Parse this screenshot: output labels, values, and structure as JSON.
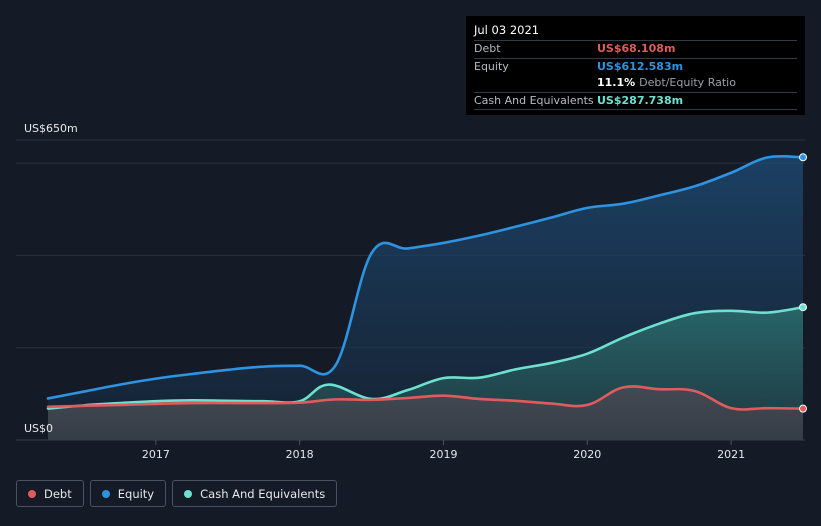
{
  "chart_data": {
    "type": "area",
    "ylim": [
      0,
      650
    ],
    "y_tick_labels": {
      "top": "US$650m",
      "bottom": "US$0"
    },
    "x_range": [
      2016.25,
      2021.5
    ],
    "x_ticks": [
      "2017",
      "2018",
      "2019",
      "2020",
      "2021"
    ],
    "grid": true,
    "legend_position": "bottom-left",
    "series": [
      {
        "name": "Debt",
        "color": "#e05c5c",
        "points": [
          [
            2016.25,
            72
          ],
          [
            2016.75,
            76
          ],
          [
            2017.25,
            80
          ],
          [
            2017.75,
            80
          ],
          [
            2018.0,
            81
          ],
          [
            2018.25,
            88
          ],
          [
            2018.5,
            87
          ],
          [
            2018.75,
            91
          ],
          [
            2019.0,
            96
          ],
          [
            2019.25,
            89
          ],
          [
            2019.5,
            85
          ],
          [
            2019.75,
            79
          ],
          [
            2020.0,
            76
          ],
          [
            2020.25,
            114
          ],
          [
            2020.5,
            110
          ],
          [
            2020.75,
            106
          ],
          [
            2021.0,
            69
          ],
          [
            2021.25,
            69
          ],
          [
            2021.5,
            68
          ]
        ]
      },
      {
        "name": "Equity",
        "color": "#2e93e0",
        "points": [
          [
            2016.25,
            90
          ],
          [
            2016.5,
            105
          ],
          [
            2016.75,
            120
          ],
          [
            2017.0,
            133
          ],
          [
            2017.25,
            143
          ],
          [
            2017.5,
            152
          ],
          [
            2017.75,
            159
          ],
          [
            2018.0,
            161
          ],
          [
            2018.25,
            162
          ],
          [
            2018.5,
            405
          ],
          [
            2018.75,
            415
          ],
          [
            2019.0,
            427
          ],
          [
            2019.25,
            443
          ],
          [
            2019.5,
            462
          ],
          [
            2019.75,
            482
          ],
          [
            2020.0,
            503
          ],
          [
            2020.25,
            512
          ],
          [
            2020.5,
            530
          ],
          [
            2020.75,
            550
          ],
          [
            2021.0,
            579
          ],
          [
            2021.25,
            612
          ],
          [
            2021.5,
            612.583
          ]
        ]
      },
      {
        "name": "Cash And Equivalents",
        "color": "#6fe0d0",
        "points": [
          [
            2016.25,
            68
          ],
          [
            2016.5,
            75
          ],
          [
            2016.75,
            80
          ],
          [
            2017.0,
            84
          ],
          [
            2017.25,
            86
          ],
          [
            2017.5,
            85
          ],
          [
            2017.75,
            84
          ],
          [
            2018.0,
            84
          ],
          [
            2018.2,
            120
          ],
          [
            2018.5,
            89
          ],
          [
            2018.75,
            108
          ],
          [
            2019.0,
            134
          ],
          [
            2019.25,
            135
          ],
          [
            2019.5,
            153
          ],
          [
            2019.75,
            167
          ],
          [
            2020.0,
            187
          ],
          [
            2020.25,
            222
          ],
          [
            2020.5,
            252
          ],
          [
            2020.75,
            275
          ],
          [
            2021.0,
            280
          ],
          [
            2021.25,
            276
          ],
          [
            2021.5,
            287.738
          ]
        ]
      }
    ]
  },
  "tooltip": {
    "date": "Jul 03 2021",
    "debt_label": "Debt",
    "debt_value": "US$68.108m",
    "equity_label": "Equity",
    "equity_value": "US$612.583m",
    "ratio_value": "11.1%",
    "ratio_label": "Debt/Equity Ratio",
    "cash_label": "Cash And Equivalents",
    "cash_value": "US$287.738m"
  },
  "legend": {
    "debt": "Debt",
    "equity": "Equity",
    "cash": "Cash And Equivalents"
  },
  "colors": {
    "debt": "#e05c5c",
    "equity": "#2e93e0",
    "cash": "#6fe0d0",
    "background": "#151b26"
  }
}
